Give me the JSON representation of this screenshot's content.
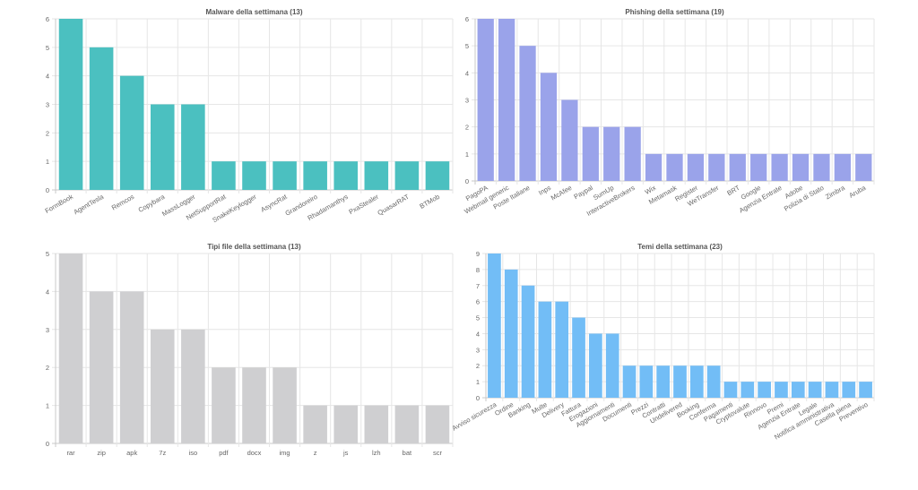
{
  "colors": {
    "teal": "#4bc0c0",
    "lavender": "#9aa3ea",
    "gray": "#cfcfd1",
    "blue": "#72bdf6",
    "grid": "#e6e6e6",
    "axis": "#c8c8c8",
    "text": "#666666",
    "title": "#555555"
  },
  "chart_data": [
    {
      "type": "bar",
      "title": "Malware della settimana (13)",
      "categories": [
        "FormBook",
        "AgentTesla",
        "Remcos",
        "Copybara",
        "MassLogger",
        "NetSupportRat",
        "SnakeKeylogger",
        "AsyncRat",
        "Grandoreiro",
        "Rhadamanthys",
        "PxaStealer",
        "QuasarRAT",
        "BTMob"
      ],
      "values": [
        6,
        5,
        4,
        3,
        3,
        1,
        1,
        1,
        1,
        1,
        1,
        1,
        1
      ],
      "ylim": [
        0,
        6
      ],
      "yticks": [
        0,
        1,
        2,
        3,
        4,
        5,
        6
      ],
      "xlabel": "",
      "ylabel": "",
      "grid": true,
      "legend": "none",
      "color_key": "teal",
      "rotate": true
    },
    {
      "type": "bar",
      "title": "Phishing della settimana (19)",
      "categories": [
        "PagoPA",
        "Webmail generic",
        "Poste Italiane",
        "Inps",
        "McAfee",
        "Paypal",
        "SumUp",
        "InteractiveBrokers",
        "Wix",
        "Metamask",
        "Register",
        "WeTransfer",
        "BRT",
        "Google",
        "Agenzia Entrate",
        "Adobe",
        "Polizia di Stato",
        "Zimbra",
        "Aruba"
      ],
      "values": [
        6,
        6,
        5,
        4,
        3,
        2,
        2,
        2,
        1,
        1,
        1,
        1,
        1,
        1,
        1,
        1,
        1,
        1,
        1
      ],
      "ylim": [
        0,
        6
      ],
      "yticks": [
        0,
        1,
        2,
        3,
        4,
        5,
        6
      ],
      "xlabel": "",
      "ylabel": "",
      "grid": true,
      "legend": "none",
      "color_key": "lavender",
      "rotate": true
    },
    {
      "type": "bar",
      "title": "Tipi file della settimana (13)",
      "categories": [
        "rar",
        "zip",
        "apk",
        "7z",
        "iso",
        "pdf",
        "docx",
        "img",
        "z",
        "js",
        "lzh",
        "bat",
        "scr"
      ],
      "values": [
        5,
        4,
        4,
        3,
        3,
        2,
        2,
        2,
        1,
        1,
        1,
        1,
        1
      ],
      "ylim": [
        0,
        5
      ],
      "yticks": [
        0,
        1,
        2,
        3,
        4,
        5
      ],
      "xlabel": "",
      "ylabel": "",
      "grid": true,
      "legend": "none",
      "color_key": "gray",
      "rotate": false
    },
    {
      "type": "bar",
      "title": "Temi della settimana (23)",
      "categories": [
        "Avviso sicurezza",
        "Ordine",
        "Banking",
        "Multe",
        "Delivery",
        "Fattura",
        "Erogazioni",
        "Aggiornamenti",
        "Documenti",
        "Prezzi",
        "Contratti",
        "Undelivered",
        "Booking",
        "Conferma",
        "Pagamenti",
        "Cryptovalute",
        "Rinnovo",
        "Premi",
        "Agenzia Entrate",
        "Legale",
        "Notifica amministrativa",
        "Casella piena",
        "Preventivo"
      ],
      "values": [
        9,
        8,
        7,
        6,
        6,
        5,
        4,
        4,
        2,
        2,
        2,
        2,
        2,
        2,
        1,
        1,
        1,
        1,
        1,
        1,
        1,
        1,
        1
      ],
      "ylim": [
        0,
        9
      ],
      "yticks": [
        0,
        1,
        2,
        3,
        4,
        5,
        6,
        7,
        8,
        9
      ],
      "xlabel": "",
      "ylabel": "",
      "grid": true,
      "legend": "none",
      "color_key": "blue",
      "rotate": true
    }
  ]
}
